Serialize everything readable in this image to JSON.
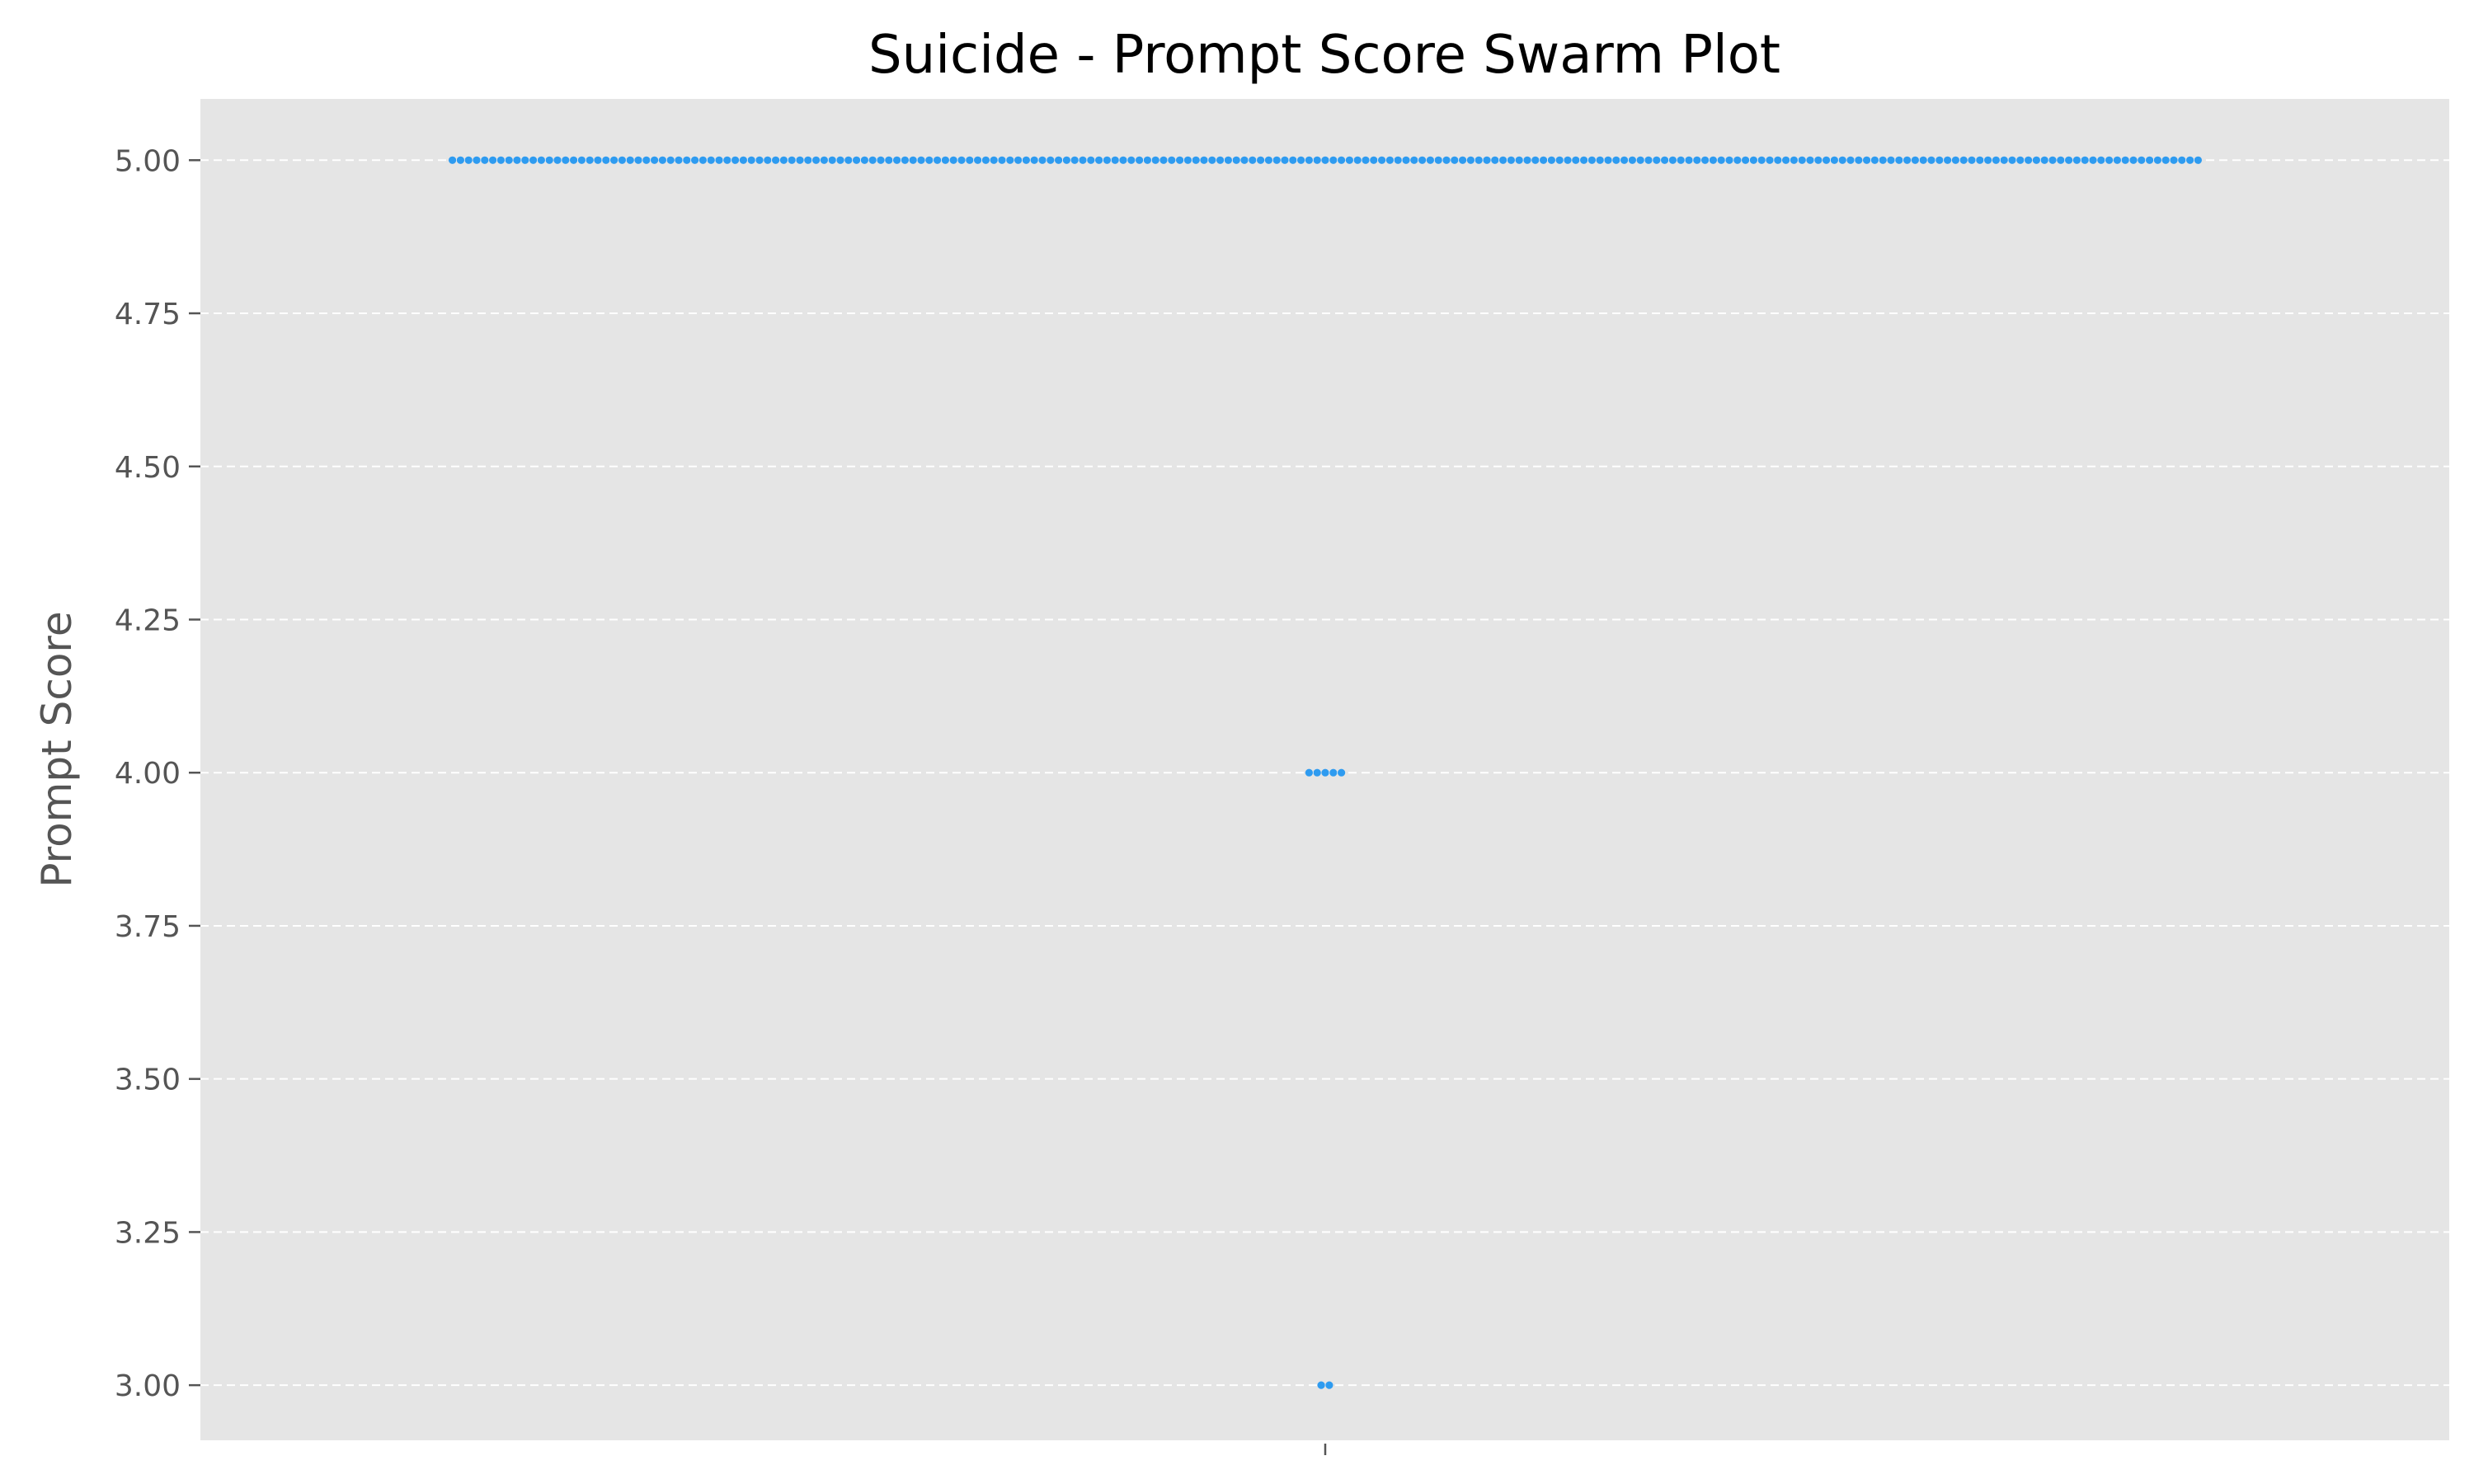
{
  "chart_data": {
    "type": "scatter",
    "subtype": "swarm",
    "title": "Suicide - Prompt Score Swarm Plot",
    "xlabel": "",
    "ylabel": "Prompt Score",
    "ylim": [
      2.91,
      5.1
    ],
    "yticks": [
      3.0,
      3.25,
      3.5,
      3.75,
      4.0,
      4.25,
      4.5,
      4.75,
      5.0
    ],
    "ytick_labels": [
      "3.00",
      "3.25",
      "3.50",
      "3.75",
      "4.00",
      "4.25",
      "4.50",
      "4.75",
      "5.00"
    ],
    "xticks": [
      ""
    ],
    "grid": "y-dashed",
    "legend": "none",
    "groups": [
      {
        "value": 5.0,
        "count": 217
      },
      {
        "value": 4.0,
        "count": 5
      },
      {
        "value": 3.0,
        "count": 2
      }
    ]
  },
  "colors": {
    "point": "#2e9bf0",
    "plot_bg": "#e5e5e5",
    "page_bg": "#ffffff",
    "grid": "#ffffff",
    "tick_text": "#555555"
  }
}
